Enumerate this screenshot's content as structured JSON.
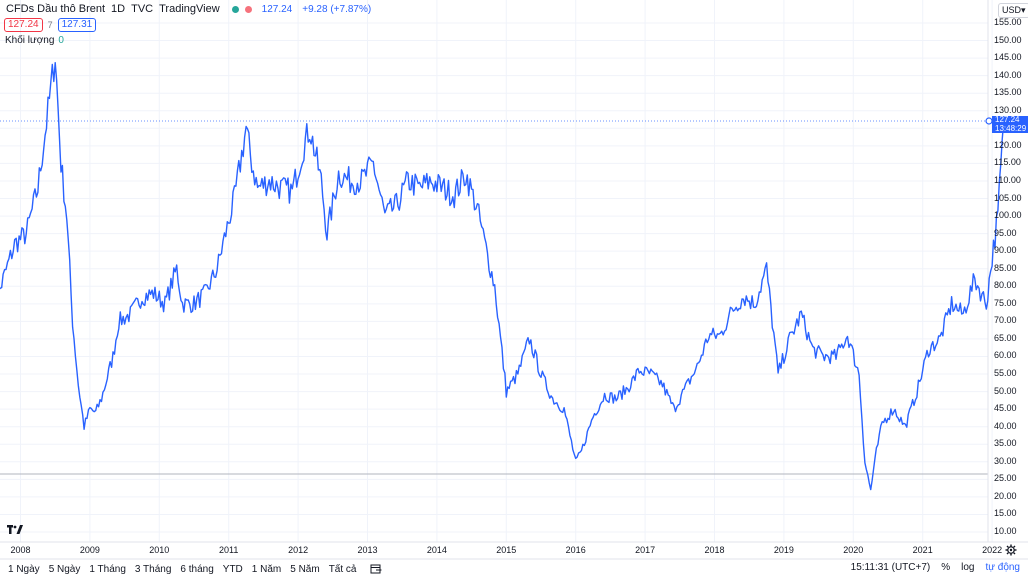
{
  "header": {
    "symbol": "CFDs Dầu thô Brent",
    "interval": "1D",
    "exchange": "TVC",
    "source": "TradingView",
    "last_price": "127.24",
    "change": "+9.28 (+7.87%)"
  },
  "quote": {
    "bid": "127.24",
    "spread": "7",
    "ask": "127.31"
  },
  "volume": {
    "label": "Khối lượng",
    "value": "0"
  },
  "currency": "USD",
  "price_tag": {
    "price": "127.24",
    "countdown": "13:48:29"
  },
  "y_ticks": [
    "155.00",
    "150.00",
    "145.00",
    "140.00",
    "135.00",
    "130.00",
    "125.00",
    "120.00",
    "115.00",
    "110.00",
    "105.00",
    "100.00",
    "95.00",
    "90.00",
    "85.00",
    "80.00",
    "75.00",
    "70.00",
    "65.00",
    "60.00",
    "55.00",
    "50.00",
    "45.00",
    "40.00",
    "35.00",
    "30.00",
    "25.00",
    "20.00",
    "15.00",
    "10.00"
  ],
  "x_ticks": [
    "2008",
    "2009",
    "2010",
    "2011",
    "2012",
    "2013",
    "2014",
    "2015",
    "2016",
    "2017",
    "2018",
    "2019",
    "2020",
    "2021",
    "2022"
  ],
  "time_ranges": [
    "1 Ngày",
    "5 Ngày",
    "1 Tháng",
    "3 Tháng",
    "6 tháng",
    "YTD",
    "1 Năm",
    "5 Năm",
    "Tất cả"
  ],
  "clock": "15:11:31 (UTC+7)",
  "controls": {
    "percent": "%",
    "log": "log",
    "auto": "tự động"
  },
  "colors": {
    "line": "#2962ff",
    "up": "#26a69a",
    "down": "#f23645",
    "grid": "#f0f3fa"
  },
  "chart_data": {
    "type": "line",
    "title": "CFDs Dầu thô Brent",
    "xlabel": "",
    "ylabel": "",
    "ylim": [
      10,
      155
    ],
    "x": [
      "2007-08",
      "2007-10",
      "2007-12",
      "2008-02",
      "2008-04",
      "2008-06",
      "2008-07",
      "2008-08",
      "2008-09",
      "2008-10",
      "2008-11",
      "2008-12",
      "2009-01",
      "2009-02",
      "2009-03",
      "2009-05",
      "2009-06",
      "2009-08",
      "2009-10",
      "2009-12",
      "2010-02",
      "2010-04",
      "2010-05",
      "2010-07",
      "2010-09",
      "2010-11",
      "2010-12",
      "2011-02",
      "2011-04",
      "2011-05",
      "2011-06",
      "2011-08",
      "2011-10",
      "2011-12",
      "2012-02",
      "2012-03",
      "2012-05",
      "2012-06",
      "2012-08",
      "2012-10",
      "2012-12",
      "2013-02",
      "2013-04",
      "2013-06",
      "2013-08",
      "2013-10",
      "2013-12",
      "2014-02",
      "2014-04",
      "2014-06",
      "2014-08",
      "2014-10",
      "2014-11",
      "2015-01",
      "2015-03",
      "2015-05",
      "2015-07",
      "2015-09",
      "2015-11",
      "2016-01",
      "2016-02",
      "2016-04",
      "2016-06",
      "2016-08",
      "2016-10",
      "2016-12",
      "2017-02",
      "2017-04",
      "2017-06",
      "2017-08",
      "2017-10",
      "2017-12",
      "2018-02",
      "2018-04",
      "2018-06",
      "2018-08",
      "2018-10",
      "2018-12",
      "2019-02",
      "2019-04",
      "2019-06",
      "2019-08",
      "2019-10",
      "2019-12",
      "2020-02",
      "2020-03",
      "2020-04",
      "2020-05",
      "2020-06",
      "2020-08",
      "2020-10",
      "2020-12",
      "2021-02",
      "2021-04",
      "2021-06",
      "2021-08",
      "2021-10",
      "2021-12",
      "2022-01",
      "2022-02",
      "2022-03"
    ],
    "series": [
      {
        "values": [
          71,
          82,
          92,
          95,
          108,
          133,
          146,
          115,
          100,
          70,
          52,
          40,
          45,
          44,
          48,
          60,
          70,
          72,
          77,
          78,
          75,
          85,
          75,
          75,
          78,
          85,
          92,
          105,
          125,
          115,
          108,
          110,
          108,
          107,
          120,
          125,
          110,
          95,
          112,
          110,
          110,
          115,
          100,
          103,
          110,
          108,
          110,
          108,
          106,
          112,
          102,
          87,
          80,
          50,
          55,
          65,
          55,
          48,
          45,
          30,
          33,
          43,
          49,
          48,
          51,
          56,
          55,
          52,
          45,
          51,
          57,
          66,
          66,
          73,
          77,
          75,
          85,
          55,
          65,
          72,
          62,
          60,
          60,
          66,
          55,
          30,
          22,
          33,
          41,
          45,
          40,
          50,
          62,
          65,
          75,
          72,
          82,
          75,
          88,
          100,
          127
        ]
      }
    ]
  }
}
